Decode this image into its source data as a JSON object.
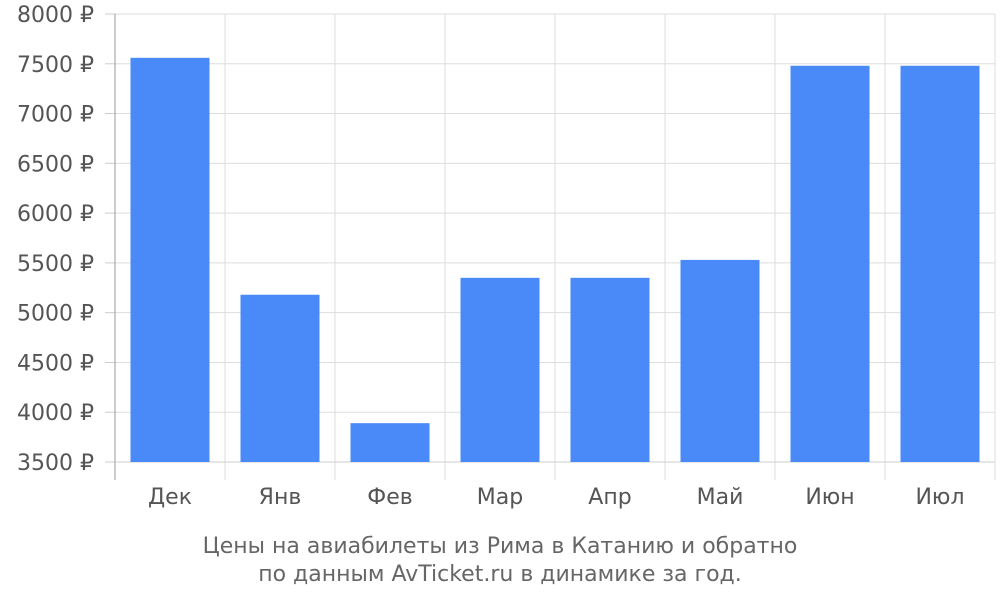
{
  "chart_data": {
    "type": "bar",
    "categories": [
      "Дек",
      "Янв",
      "Фев",
      "Мар",
      "Апр",
      "Май",
      "Июн",
      "Июл"
    ],
    "values": [
      7560,
      5180,
      3890,
      5350,
      5350,
      5530,
      7480,
      7480
    ],
    "ylim": [
      3500,
      8000
    ],
    "yticks": [
      3500,
      4000,
      4500,
      5000,
      5500,
      6000,
      6500,
      7000,
      7500,
      8000
    ],
    "ytick_labels": [
      "3500 ₽",
      "4000 ₽",
      "4500 ₽",
      "5000 ₽",
      "5500 ₽",
      "6000 ₽",
      "6500 ₽",
      "7000 ₽",
      "7500 ₽",
      "8000 ₽"
    ],
    "title": "",
    "xlabel": "",
    "ylabel": "",
    "grid": true,
    "bar_color": "#4a89f8"
  },
  "caption": {
    "line1": "Цены на авиабилеты из Рима в Катанию и обратно",
    "line2": "по данным AvTicket.ru в динамике за год."
  }
}
